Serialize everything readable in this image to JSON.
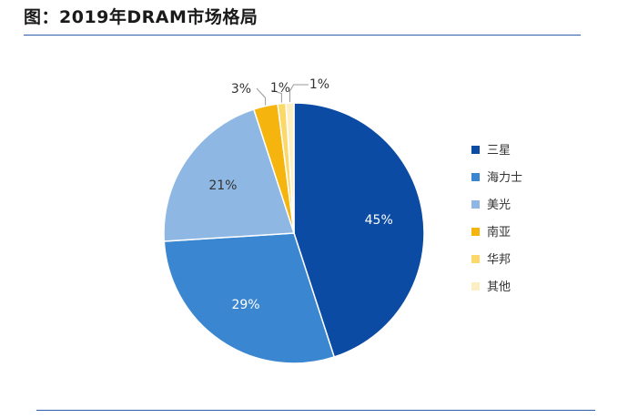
{
  "figure": {
    "title": "图：2019年DRAM市场格局"
  },
  "chart_data": {
    "type": "pie",
    "title": "",
    "start_angle_deg": 0,
    "direction": "clockwise",
    "legend_position": "right",
    "slices": [
      {
        "name": "三星",
        "value": 45,
        "label": "45%",
        "color": "#0b4ba3",
        "label_color": "#ffffff"
      },
      {
        "name": "海力士",
        "value": 29,
        "label": "29%",
        "color": "#3a86d0",
        "label_color": "#ffffff"
      },
      {
        "name": "美光",
        "value": 21,
        "label": "21%",
        "color": "#8eb8e3",
        "label_color": "#333333"
      },
      {
        "name": "南亚",
        "value": 3,
        "label": "3%",
        "color": "#f6b50e",
        "label_color": "#333333"
      },
      {
        "name": "华邦",
        "value": 1,
        "label": "1%",
        "color": "#fbd86a",
        "label_color": "#333333"
      },
      {
        "name": "其他",
        "value": 1,
        "label": "1%",
        "color": "#fdefc4",
        "label_color": "#333333"
      }
    ]
  }
}
